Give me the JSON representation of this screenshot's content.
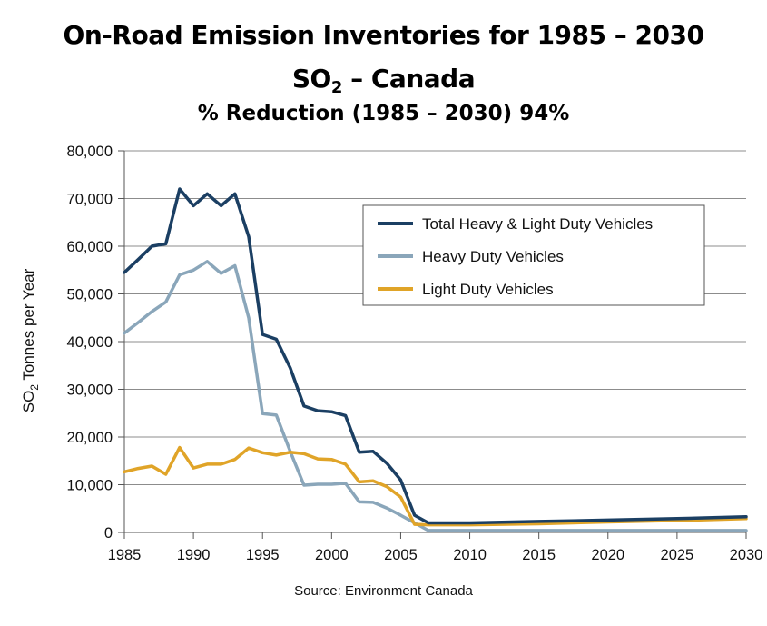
{
  "titles": {
    "line1": "On-Road Emission Inventories for 1985 – 2030",
    "line2_main": "SO",
    "line2_sub": "2",
    "line2_rest": " – Canada",
    "line3": "% Reduction (1985 – 2030) 94%"
  },
  "source": "Source: Environment Canada",
  "chart_data": {
    "type": "line",
    "ylabel_main": "SO",
    "ylabel_sub": "2",
    "ylabel_rest": " Tonnes per Year",
    "xlim": [
      1985,
      2030
    ],
    "ylim": [
      0,
      80000
    ],
    "x_ticks": [
      1985,
      1990,
      1995,
      2000,
      2005,
      2010,
      2015,
      2020,
      2025,
      2030
    ],
    "y_ticks": [
      0,
      10000,
      20000,
      30000,
      40000,
      50000,
      60000,
      70000,
      80000
    ],
    "y_tick_labels": [
      "0",
      "10,000",
      "20,000",
      "30,000",
      "40,000",
      "50,000",
      "60,000",
      "70,000",
      "80,000"
    ],
    "grid": "horizontal",
    "legend_position": "upper-right",
    "series": [
      {
        "name": "Total Heavy & Light Duty Vehicles",
        "color": "#1b3f63",
        "points": [
          [
            1985,
            54500
          ],
          [
            1986,
            57200
          ],
          [
            1987,
            60000
          ],
          [
            1988,
            60500
          ],
          [
            1989,
            72000
          ],
          [
            1990,
            68500
          ],
          [
            1991,
            71000
          ],
          [
            1992,
            68500
          ],
          [
            1993,
            71000
          ],
          [
            1994,
            62000
          ],
          [
            1995,
            41500
          ],
          [
            1996,
            40500
          ],
          [
            1997,
            34500
          ],
          [
            1998,
            26500
          ],
          [
            1999,
            25500
          ],
          [
            2000,
            25300
          ],
          [
            2001,
            24500
          ],
          [
            2002,
            16800
          ],
          [
            2003,
            17000
          ],
          [
            2004,
            14500
          ],
          [
            2005,
            11000
          ],
          [
            2006,
            3600
          ],
          [
            2007,
            2000
          ],
          [
            2008,
            2000
          ],
          [
            2009,
            2000
          ],
          [
            2010,
            2000
          ],
          [
            2015,
            2300
          ],
          [
            2020,
            2600
          ],
          [
            2025,
            2900
          ],
          [
            2030,
            3300
          ]
        ]
      },
      {
        "name": "Heavy Duty Vehicles",
        "color": "#8aa6ba",
        "points": [
          [
            1985,
            41800
          ],
          [
            1986,
            44000
          ],
          [
            1987,
            46300
          ],
          [
            1988,
            48300
          ],
          [
            1989,
            54000
          ],
          [
            1990,
            55000
          ],
          [
            1991,
            56800
          ],
          [
            1992,
            54300
          ],
          [
            1993,
            55900
          ],
          [
            1994,
            45000
          ],
          [
            1995,
            24900
          ],
          [
            1996,
            24600
          ],
          [
            1997,
            17000
          ],
          [
            1998,
            9900
          ],
          [
            1999,
            10100
          ],
          [
            2000,
            10100
          ],
          [
            2001,
            10300
          ],
          [
            2002,
            6400
          ],
          [
            2003,
            6300
          ],
          [
            2004,
            5100
          ],
          [
            2005,
            3600
          ],
          [
            2006,
            2000
          ],
          [
            2007,
            400
          ],
          [
            2010,
            400
          ],
          [
            2020,
            400
          ],
          [
            2030,
            400
          ]
        ]
      },
      {
        "name": "Light Duty Vehicles",
        "color": "#e0a428",
        "points": [
          [
            1985,
            12700
          ],
          [
            1986,
            13400
          ],
          [
            1987,
            13900
          ],
          [
            1988,
            12200
          ],
          [
            1989,
            17800
          ],
          [
            1990,
            13500
          ],
          [
            1991,
            14300
          ],
          [
            1992,
            14300
          ],
          [
            1993,
            15300
          ],
          [
            1994,
            17700
          ],
          [
            1995,
            16700
          ],
          [
            1996,
            16200
          ],
          [
            1997,
            16800
          ],
          [
            1998,
            16500
          ],
          [
            1999,
            15400
          ],
          [
            2000,
            15300
          ],
          [
            2001,
            14300
          ],
          [
            2002,
            10600
          ],
          [
            2003,
            10800
          ],
          [
            2004,
            9600
          ],
          [
            2005,
            7400
          ],
          [
            2006,
            1700
          ],
          [
            2007,
            1600
          ],
          [
            2010,
            1600
          ],
          [
            2015,
            1800
          ],
          [
            2020,
            2200
          ],
          [
            2025,
            2500
          ],
          [
            2030,
            2900
          ]
        ]
      }
    ]
  }
}
